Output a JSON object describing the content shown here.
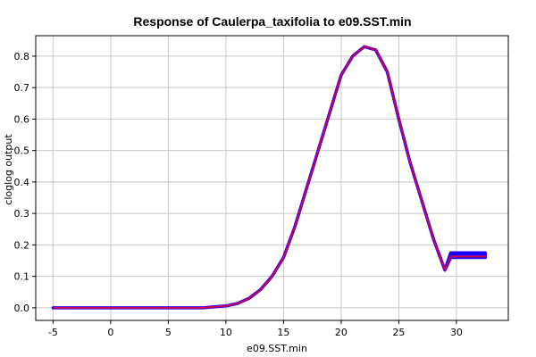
{
  "chart_data": {
    "type": "line",
    "title": "Response of Caulerpa_taxifolia to e09.SST.min",
    "xlabel": "e09.SST.min",
    "ylabel": "cloglog output",
    "xlim": [
      -6.5,
      34.5
    ],
    "ylim": [
      -0.04,
      0.865
    ],
    "xticks": [
      -5,
      0,
      5,
      10,
      15,
      20,
      25,
      30
    ],
    "yticks": [
      0.0,
      0.1,
      0.2,
      0.3,
      0.4,
      0.5,
      0.6,
      0.7,
      0.8
    ],
    "grid": true,
    "legend": "none",
    "colors": {
      "band": "#1a00ff",
      "line": "#cc0055",
      "grid": "#c8c8c8",
      "frame": "#000000"
    },
    "series": [
      {
        "x": [
          -5,
          0,
          5,
          8,
          9,
          10,
          11,
          12,
          13,
          14,
          15,
          16,
          17,
          18,
          19,
          20,
          21,
          22,
          23,
          24,
          25,
          26,
          27,
          28,
          29,
          29.5,
          30,
          31,
          32.5
        ],
        "values": [
          0.0,
          0.0,
          0.0,
          0.0,
          0.003,
          0.006,
          0.014,
          0.03,
          0.058,
          0.1,
          0.16,
          0.26,
          0.38,
          0.5,
          0.62,
          0.74,
          0.8,
          0.83,
          0.82,
          0.75,
          0.6,
          0.46,
          0.34,
          0.22,
          0.12,
          0.163,
          0.163,
          0.163,
          0.163
        ],
        "band_low": [
          0.0,
          0.0,
          0.0,
          0.0,
          0.003,
          0.006,
          0.014,
          0.03,
          0.058,
          0.1,
          0.16,
          0.26,
          0.38,
          0.5,
          0.62,
          0.74,
          0.8,
          0.83,
          0.82,
          0.75,
          0.6,
          0.46,
          0.34,
          0.22,
          0.12,
          0.16,
          0.16,
          0.16,
          0.16
        ],
        "band_high": [
          0.0,
          0.0,
          0.0,
          0.0,
          0.003,
          0.006,
          0.014,
          0.03,
          0.058,
          0.1,
          0.16,
          0.26,
          0.38,
          0.5,
          0.62,
          0.74,
          0.8,
          0.83,
          0.82,
          0.75,
          0.6,
          0.46,
          0.34,
          0.22,
          0.12,
          0.175,
          0.175,
          0.175,
          0.175
        ]
      }
    ]
  }
}
